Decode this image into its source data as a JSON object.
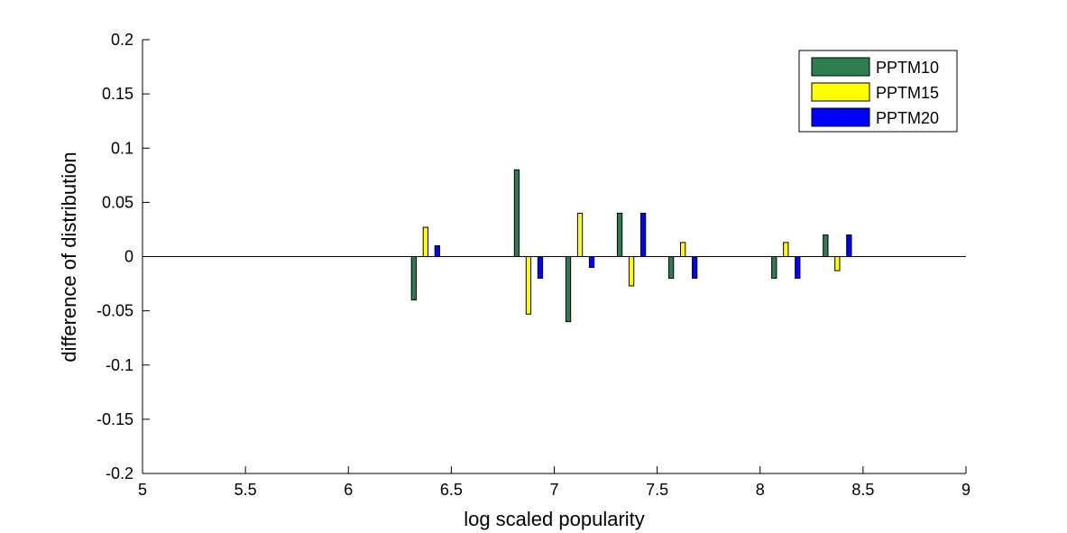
{
  "chart_data": {
    "type": "bar",
    "xlabel": "log scaled popularity",
    "ylabel": "difference of distribution",
    "xlim": [
      5,
      9
    ],
    "ylim": [
      -0.2,
      0.2
    ],
    "x_ticks": [
      "5",
      "5.5",
      "6",
      "6.5",
      "7",
      "7.5",
      "8",
      "8.5",
      "9"
    ],
    "x_tick_values": [
      5,
      5.5,
      6,
      6.5,
      7,
      7.5,
      8,
      8.5,
      9
    ],
    "y_ticks": [
      "0.2",
      "0.15",
      "0.1",
      "0.05",
      "0",
      "-0.05",
      "-0.1",
      "-0.15",
      "-0.2"
    ],
    "y_tick_values": [
      0.2,
      0.15,
      0.1,
      0.05,
      0,
      -0.05,
      -0.1,
      -0.15,
      -0.2
    ],
    "x": [
      6.375,
      6.875,
      7.125,
      7.375,
      7.625,
      8.125,
      8.375
    ],
    "bar_width": 0.0232,
    "series": [
      {
        "name": "PPTM10",
        "color": "#2e7d50",
        "offset": -0.057,
        "values": [
          -0.04,
          0.08,
          -0.06,
          0.04,
          -0.02,
          -0.02,
          0.02
        ]
      },
      {
        "name": "PPTM15",
        "color": "#ffff00",
        "offset": 0,
        "values": [
          0.027,
          -0.053,
          0.04,
          -0.027,
          0.013,
          0.013,
          -0.013
        ]
      },
      {
        "name": "PPTM20",
        "color": "#0000ff",
        "offset": 0.057,
        "values": [
          0.01,
          -0.02,
          -0.01,
          0.04,
          -0.02,
          -0.02,
          0.02
        ]
      }
    ],
    "legend": {
      "placement": "top-right"
    },
    "grid": false
  }
}
